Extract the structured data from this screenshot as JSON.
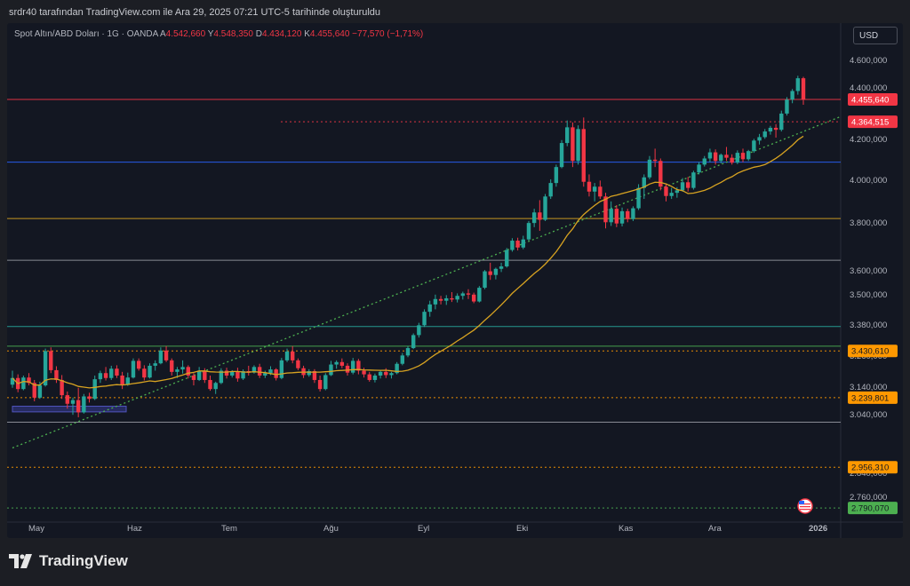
{
  "header": {
    "created_by": "srdr40 tarafından TradingView.com ile Ara 29, 2025 07:21 UTC-5 tarihinde oluşturuldu"
  },
  "legend": {
    "symbol": "Spot Altın/ABD Doları · 1G · OANDA",
    "open_key": "A",
    "open": "4.542,660",
    "high_key": "Y",
    "high": "4.548,350",
    "low_key": "D",
    "low": "4.434,120",
    "close_key": "K",
    "close": "4.455,640",
    "change": "−77,570 (−1,71%)"
  },
  "currency_button": "USD",
  "brand": {
    "name": "TradingView"
  },
  "colors": {
    "background": "#131722",
    "up": "#26a69a",
    "down": "#f23645",
    "ma": "#d8a321",
    "trend": "#4caf50"
  },
  "chart_data": {
    "type": "candlestick",
    "x_labels": [
      "May",
      "Haz",
      "Tem",
      "Ağu",
      "Eyl",
      "Eki",
      "Kas",
      "Ara",
      "2026"
    ],
    "y_tick_labels": [
      "4.600,000",
      "4.400,000",
      "4.200,000",
      "4.000,000",
      "3.800,000",
      "3.600,000",
      "3.500,000",
      "3.380,000",
      "3.260,000",
      "3.140,000",
      "3.040,000",
      "2.840,000",
      "2.760,000"
    ],
    "price_labels": [
      {
        "text": "4.455,640",
        "color": "#f23645"
      },
      {
        "text": "4.364,515",
        "color": "#f23645"
      },
      {
        "text": "3.430,610",
        "color": "#ff9800"
      },
      {
        "text": "3.239,801",
        "color": "#ff9800"
      },
      {
        "text": "2.956,310",
        "color": "#ff9800"
      },
      {
        "text": "2.790,070",
        "color": "#4caf50"
      }
    ],
    "horizontal_levels": [
      {
        "value": 4455.64,
        "color": "#f23645",
        "style": "solid"
      },
      {
        "value": 4364.515,
        "color": "#f23645",
        "style": "dotted"
      },
      {
        "value": 4200,
        "color": "#2962ff",
        "style": "solid"
      },
      {
        "value": 3970,
        "color": "#d8a321",
        "style": "solid"
      },
      {
        "value": 3800,
        "color": "#9598a1",
        "style": "solid"
      },
      {
        "value": 3530,
        "color": "#26a69a",
        "style": "solid"
      },
      {
        "value": 3450,
        "color": "#4caf50",
        "style": "solid"
      },
      {
        "value": 3430.61,
        "color": "#ff9800",
        "style": "dotted"
      },
      {
        "value": 3239.801,
        "color": "#ff9800",
        "style": "dotted"
      },
      {
        "value": 3140,
        "color": "#9598a1",
        "style": "solid"
      },
      {
        "value": 2956.31,
        "color": "#ff9800",
        "style": "dotted"
      },
      {
        "value": 2790.07,
        "color": "#4caf50",
        "style": "dotted"
      }
    ],
    "candles": [
      [
        3293,
        3350,
        3280,
        3320
      ],
      [
        3320,
        3335,
        3262,
        3275
      ],
      [
        3275,
        3330,
        3270,
        3322
      ],
      [
        3322,
        3340,
        3290,
        3300
      ],
      [
        3300,
        3312,
        3225,
        3240
      ],
      [
        3240,
        3305,
        3235,
        3290
      ],
      [
        3290,
        3440,
        3285,
        3430
      ],
      [
        3430,
        3445,
        3340,
        3352
      ],
      [
        3352,
        3368,
        3300,
        3312
      ],
      [
        3312,
        3332,
        3235,
        3250
      ],
      [
        3250,
        3265,
        3195,
        3215
      ],
      [
        3215,
        3240,
        3170,
        3230
      ],
      [
        3230,
        3280,
        3160,
        3180
      ],
      [
        3180,
        3255,
        3175,
        3245
      ],
      [
        3245,
        3260,
        3220,
        3235
      ],
      [
        3235,
        3330,
        3230,
        3315
      ],
      [
        3315,
        3350,
        3300,
        3340
      ],
      [
        3340,
        3365,
        3310,
        3320
      ],
      [
        3320,
        3370,
        3312,
        3358
      ],
      [
        3358,
        3372,
        3320,
        3330
      ],
      [
        3330,
        3345,
        3275,
        3292
      ],
      [
        3292,
        3342,
        3288,
        3322
      ],
      [
        3322,
        3400,
        3318,
        3390
      ],
      [
        3390,
        3400,
        3350,
        3358
      ],
      [
        3358,
        3372,
        3310,
        3322
      ],
      [
        3322,
        3380,
        3318,
        3370
      ],
      [
        3370,
        3392,
        3350,
        3380
      ],
      [
        3380,
        3445,
        3376,
        3432
      ],
      [
        3432,
        3450,
        3385,
        3392
      ],
      [
        3392,
        3400,
        3330,
        3345
      ],
      [
        3345,
        3365,
        3320,
        3355
      ],
      [
        3355,
        3392,
        3338,
        3365
      ],
      [
        3365,
        3372,
        3318,
        3330
      ],
      [
        3330,
        3340,
        3290,
        3312
      ],
      [
        3312,
        3365,
        3308,
        3350
      ],
      [
        3350,
        3360,
        3300,
        3312
      ],
      [
        3312,
        3330,
        3268,
        3275
      ],
      [
        3275,
        3305,
        3255,
        3300
      ],
      [
        3300,
        3360,
        3295,
        3350
      ],
      [
        3350,
        3362,
        3318,
        3330
      ],
      [
        3330,
        3352,
        3322,
        3345
      ],
      [
        3345,
        3362,
        3305,
        3318
      ],
      [
        3318,
        3355,
        3312,
        3348
      ],
      [
        3348,
        3370,
        3330,
        3342
      ],
      [
        3342,
        3372,
        3338,
        3365
      ],
      [
        3365,
        3378,
        3320,
        3330
      ],
      [
        3330,
        3350,
        3320,
        3340
      ],
      [
        3340,
        3368,
        3332,
        3355
      ],
      [
        3355,
        3360,
        3310,
        3320
      ],
      [
        3320,
        3402,
        3315,
        3392
      ],
      [
        3392,
        3440,
        3385,
        3428
      ],
      [
        3428,
        3450,
        3380,
        3392
      ],
      [
        3392,
        3400,
        3352,
        3360
      ],
      [
        3360,
        3370,
        3320,
        3332
      ],
      [
        3332,
        3356,
        3325,
        3348
      ],
      [
        3348,
        3356,
        3300,
        3312
      ],
      [
        3312,
        3330,
        3265,
        3275
      ],
      [
        3275,
        3340,
        3270,
        3332
      ],
      [
        3332,
        3390,
        3328,
        3375
      ],
      [
        3375,
        3392,
        3358,
        3385
      ],
      [
        3385,
        3400,
        3360,
        3370
      ],
      [
        3370,
        3380,
        3330,
        3342
      ],
      [
        3342,
        3402,
        3335,
        3390
      ],
      [
        3390,
        3398,
        3335,
        3350
      ],
      [
        3350,
        3362,
        3322,
        3335
      ],
      [
        3335,
        3345,
        3305,
        3312
      ],
      [
        3312,
        3338,
        3302,
        3330
      ],
      [
        3330,
        3350,
        3318,
        3345
      ],
      [
        3345,
        3360,
        3320,
        3332
      ],
      [
        3332,
        3345,
        3318,
        3340
      ],
      [
        3340,
        3385,
        3335,
        3378
      ],
      [
        3378,
        3422,
        3372,
        3412
      ],
      [
        3412,
        3450,
        3405,
        3442
      ],
      [
        3442,
        3502,
        3438,
        3495
      ],
      [
        3495,
        3545,
        3485,
        3535
      ],
      [
        3535,
        3600,
        3528,
        3590
      ],
      [
        3590,
        3635,
        3570,
        3620
      ],
      [
        3620,
        3660,
        3600,
        3642
      ],
      [
        3642,
        3655,
        3620,
        3635
      ],
      [
        3635,
        3658,
        3618,
        3645
      ],
      [
        3645,
        3670,
        3630,
        3640
      ],
      [
        3640,
        3665,
        3628,
        3655
      ],
      [
        3655,
        3672,
        3640,
        3665
      ],
      [
        3665,
        3682,
        3642,
        3660
      ],
      [
        3660,
        3668,
        3625,
        3632
      ],
      [
        3632,
        3695,
        3628,
        3688
      ],
      [
        3688,
        3760,
        3682,
        3755
      ],
      [
        3755,
        3790,
        3720,
        3740
      ],
      [
        3740,
        3770,
        3722,
        3765
      ],
      [
        3765,
        3790,
        3752,
        3775
      ],
      [
        3775,
        3850,
        3770,
        3842
      ],
      [
        3842,
        3890,
        3835,
        3880
      ],
      [
        3880,
        3892,
        3840,
        3852
      ],
      [
        3852,
        3900,
        3845,
        3885
      ],
      [
        3885,
        3960,
        3880,
        3952
      ],
      [
        3952,
        4010,
        3935,
        3995
      ],
      [
        3995,
        4045,
        3920,
        3965
      ],
      [
        3965,
        4070,
        3960,
        4060
      ],
      [
        4060,
        4130,
        4050,
        4115
      ],
      [
        4115,
        4190,
        4100,
        4180
      ],
      [
        4180,
        4290,
        4175,
        4278
      ],
      [
        4278,
        4370,
        4265,
        4342
      ],
      [
        4342,
        4362,
        4180,
        4205
      ],
      [
        4205,
        4350,
        4190,
        4335
      ],
      [
        4335,
        4382,
        4100,
        4120
      ],
      [
        4120,
        4150,
        4060,
        4080
      ],
      [
        4080,
        4115,
        4040,
        4100
      ],
      [
        4100,
        4125,
        4050,
        4060
      ],
      [
        4060,
        4075,
        3930,
        3955
      ],
      [
        3955,
        4040,
        3940,
        4010
      ],
      [
        4010,
        4025,
        3935,
        3950
      ],
      [
        3950,
        4015,
        3938,
        4000
      ],
      [
        4000,
        4010,
        3955,
        3968
      ],
      [
        3968,
        4020,
        3960,
        4012
      ],
      [
        4012,
        4110,
        4005,
        4095
      ],
      [
        4095,
        4150,
        4050,
        4138
      ],
      [
        4138,
        4225,
        4130,
        4210
      ],
      [
        4210,
        4255,
        4180,
        4205
      ],
      [
        4205,
        4215,
        4085,
        4100
      ],
      [
        4100,
        4110,
        4040,
        4062
      ],
      [
        4062,
        4095,
        4050,
        4075
      ],
      [
        4075,
        4098,
        4055,
        4085
      ],
      [
        4085,
        4135,
        4080,
        4118
      ],
      [
        4118,
        4140,
        4080,
        4095
      ],
      [
        4095,
        4165,
        4088,
        4158
      ],
      [
        4158,
        4200,
        4150,
        4190
      ],
      [
        4190,
        4225,
        4182,
        4215
      ],
      [
        4215,
        4255,
        4200,
        4240
      ],
      [
        4240,
        4252,
        4190,
        4205
      ],
      [
        4205,
        4235,
        4195,
        4230
      ],
      [
        4230,
        4262,
        4205,
        4218
      ],
      [
        4218,
        4232,
        4190,
        4198
      ],
      [
        4198,
        4248,
        4192,
        4238
      ],
      [
        4238,
        4255,
        4200,
        4212
      ],
      [
        4212,
        4250,
        4205,
        4245
      ],
      [
        4245,
        4295,
        4238,
        4288
      ],
      [
        4288,
        4315,
        4272,
        4302
      ],
      [
        4302,
        4335,
        4295,
        4325
      ],
      [
        4325,
        4348,
        4312,
        4340
      ],
      [
        4340,
        4355,
        4300,
        4332
      ],
      [
        4332,
        4410,
        4325,
        4398
      ],
      [
        4398,
        4465,
        4390,
        4455
      ],
      [
        4455,
        4498,
        4440,
        4490
      ],
      [
        4490,
        4552,
        4475,
        4542
      ],
      [
        4542,
        4548,
        4434,
        4455
      ]
    ],
    "ma_period": 20,
    "trendline": {
      "from": {
        "index": 0,
        "value": 3035
      },
      "to": {
        "index": 144,
        "value": 4325
      }
    },
    "y_axis": {
      "bottom_value": 2740,
      "top_value": 4680
    },
    "grid": false
  }
}
